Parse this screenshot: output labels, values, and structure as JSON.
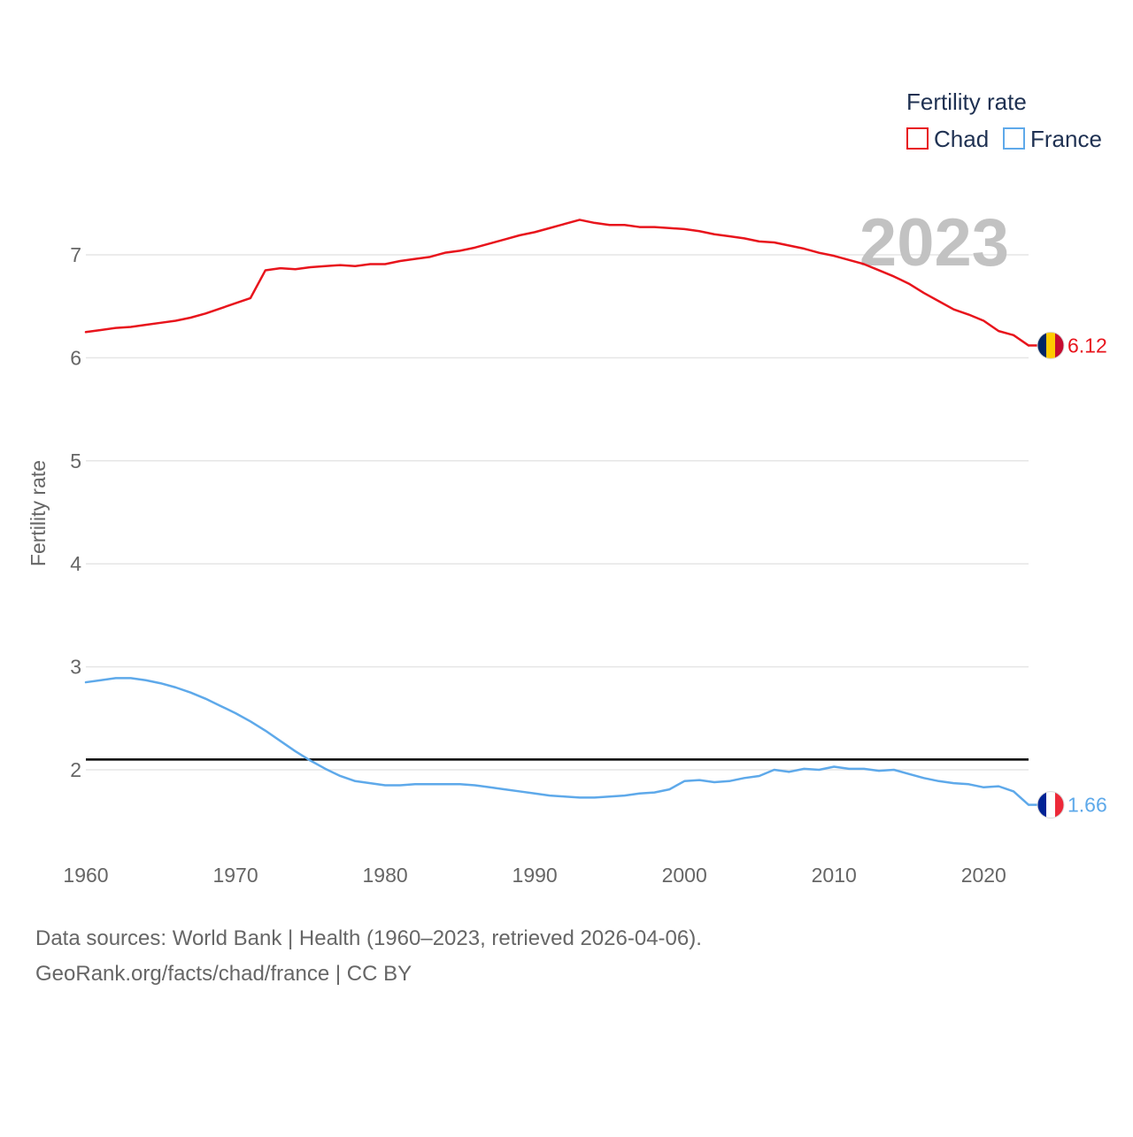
{
  "chart_data": {
    "type": "line",
    "title": "Fertility rate",
    "xlabel": "",
    "ylabel": "Fertility rate",
    "xlim": [
      1960,
      2023
    ],
    "ylim": [
      1.5,
      7.6
    ],
    "x_ticks": [
      "1960",
      "1970",
      "1980",
      "1990",
      "2000",
      "2010",
      "2020"
    ],
    "y_ticks": [
      "2",
      "3",
      "4",
      "5",
      "6",
      "7"
    ],
    "year_label": "2023",
    "reference_line": {
      "value": 2.1,
      "color": "#000000"
    },
    "legend": {
      "title": "Fertility rate",
      "position": "top-right"
    },
    "x": [
      1960,
      1961,
      1962,
      1963,
      1964,
      1965,
      1966,
      1967,
      1968,
      1969,
      1970,
      1971,
      1972,
      1973,
      1974,
      1975,
      1976,
      1977,
      1978,
      1979,
      1980,
      1981,
      1982,
      1983,
      1984,
      1985,
      1986,
      1987,
      1988,
      1989,
      1990,
      1991,
      1992,
      1993,
      1994,
      1995,
      1996,
      1997,
      1998,
      1999,
      2000,
      2001,
      2002,
      2003,
      2004,
      2005,
      2006,
      2007,
      2008,
      2009,
      2010,
      2011,
      2012,
      2013,
      2014,
      2015,
      2016,
      2017,
      2018,
      2019,
      2020,
      2021,
      2022,
      2023
    ],
    "series": [
      {
        "name": "Chad",
        "color": "#e8141c",
        "end_label": "6.12",
        "flag": "chad",
        "values": [
          6.25,
          6.27,
          6.29,
          6.3,
          6.32,
          6.34,
          6.36,
          6.39,
          6.43,
          6.48,
          6.53,
          6.58,
          6.85,
          6.87,
          6.86,
          6.88,
          6.89,
          6.9,
          6.89,
          6.91,
          6.91,
          6.94,
          6.96,
          6.98,
          7.02,
          7.04,
          7.07,
          7.11,
          7.15,
          7.19,
          7.22,
          7.26,
          7.3,
          7.34,
          7.31,
          7.29,
          7.29,
          7.27,
          7.27,
          7.26,
          7.25,
          7.23,
          7.2,
          7.18,
          7.16,
          7.13,
          7.12,
          7.09,
          7.06,
          7.02,
          6.99,
          6.95,
          6.91,
          6.85,
          6.79,
          6.72,
          6.63,
          6.55,
          6.47,
          6.42,
          6.36,
          6.26,
          6.22,
          6.12
        ]
      },
      {
        "name": "France",
        "color": "#5ea9ea",
        "end_label": "1.66",
        "flag": "france",
        "values": [
          2.85,
          2.87,
          2.89,
          2.89,
          2.87,
          2.84,
          2.8,
          2.75,
          2.69,
          2.62,
          2.55,
          2.47,
          2.38,
          2.28,
          2.18,
          2.09,
          2.01,
          1.94,
          1.89,
          1.87,
          1.85,
          1.85,
          1.86,
          1.86,
          1.86,
          1.86,
          1.85,
          1.83,
          1.81,
          1.79,
          1.77,
          1.75,
          1.74,
          1.73,
          1.73,
          1.74,
          1.75,
          1.77,
          1.78,
          1.81,
          1.89,
          1.9,
          1.88,
          1.89,
          1.92,
          1.94,
          2.0,
          1.98,
          2.01,
          2.0,
          2.03,
          2.01,
          2.01,
          1.99,
          2.0,
          1.96,
          1.92,
          1.89,
          1.87,
          1.86,
          1.83,
          1.84,
          1.79,
          1.66
        ]
      }
    ]
  },
  "footer": {
    "line1": "Data sources: World Bank | Health (1960–2023, retrieved 2026-04-06).",
    "line2": "GeoRank.org/facts/chad/france | CC BY"
  }
}
